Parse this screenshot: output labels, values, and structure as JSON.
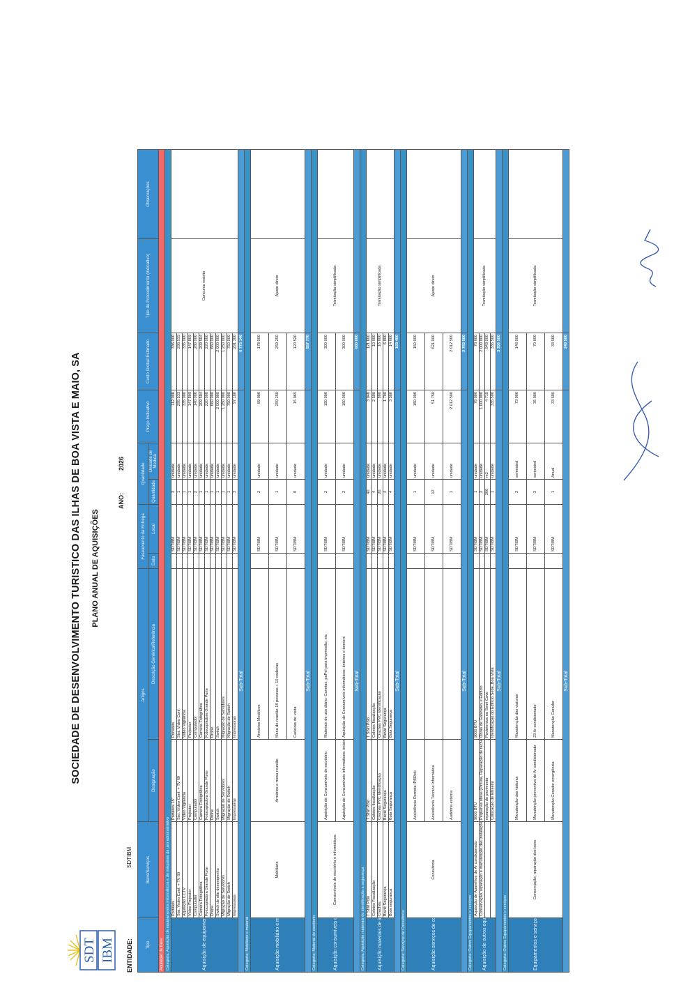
{
  "header": {
    "org": "SOCIEDADE DE DESENVOLVIMENTO TURISTICO DAS ILHAS DE BOA VISTA E MAIO, SA",
    "subtitle": "PLANO ANUAL DE AQUISIÇÕES",
    "entity_label": "ENTIDADE:",
    "entity_value": "SDTIBM",
    "year_label": "ANO:",
    "year_value": "2026",
    "logo_top": "SDT",
    "logo_bottom": "IBM"
  },
  "columns": {
    "tipo": "Tipo",
    "bens": "Bens/Serviços",
    "artigos": "Artigos",
    "designacao": "Designação",
    "descricao": "Descrição Genérica/Referência",
    "faseamento": "Faseamento da Entrega",
    "data": "Data",
    "local": "Local",
    "quantidade_grp": "Quantidade",
    "quantidade": "Quantidade",
    "unidade": "Unidade de Medida",
    "preco": "Preço Indicativo",
    "custo": "Custo Global Estimado",
    "procedimento": "Tipo de Procedimento (indicativo)",
    "observacoes": "Observações"
  },
  "section": "Aquisição de Bens",
  "groups": [
    {
      "category": "Categoria: Aquisição de equipamentos informáticos e de máquinas de uso administrativo",
      "tipo": "Aquisição de equipamentos informáticos e de Máquinas de uso administrativo",
      "procedimento": "Concurso restrito",
      "subtotal_label": "Sub-Total",
      "subtotal": "6 775 146",
      "rows": [
        {
          "bens": "Portáteis",
          "designacao": "Portáteis 15''",
          "descricao": "Portateis",
          "local": "SDTIBM",
          "qtd": "3",
          "unidade": "unidade",
          "preco": "112 000",
          "custo": "336 000"
        },
        {
          "bens": "Sist. Vídeo Conf. + TV 60",
          "designacao": "Sist. Vídeo Conf. + TV 60",
          "descricao": "Sist. Vídeo Conf.",
          "local": "SDTIBM",
          "qtd": "1",
          "unidade": "unidade",
          "preco": "295 533",
          "custo": "295 533"
        },
        {
          "bens": "Aquisição CCTV",
          "designacao": "Vídeo Vigilância",
          "descricao": "Vídeo Vigilância",
          "local": "SDTIBM",
          "qtd": "1",
          "unidade": "unidade",
          "preco": "335 000",
          "custo": "335 000"
        },
        {
          "bens": "Vídeo Projector",
          "designacao": "Projector",
          "descricao": "Projector",
          "local": "SDTIBM",
          "qtd": "1",
          "unidade": "unidade",
          "preco": "147 809",
          "custo": "147 809"
        },
        {
          "bens": "Computador",
          "designacao": "Computador",
          "descricao": "Computador",
          "local": "SDTIBM",
          "qtd": "2",
          "unidade": "unidade",
          "preco": "140 000",
          "custo": "280 000"
        },
        {
          "bens": "Camera Fotográfica",
          "designacao": "Camera Fotográfica",
          "descricao": "Camera Fotográfica",
          "local": "SDTIBM",
          "qtd": "1",
          "unidade": "unidade",
          "preco": "209 504",
          "custo": "209 504"
        },
        {
          "bens": "Fotocopiadora Grande Porte",
          "designacao": "Fotocopiadora Grande Porte",
          "descricao": "Fotocopiadora Grande Porte",
          "local": "SDTIBM",
          "qtd": "1",
          "unidade": "unidade",
          "preco": "220 000",
          "custo": "220 000"
        },
        {
          "bens": "Drone",
          "designacao": "Drone",
          "descricao": "Drone",
          "local": "SDTIBM",
          "qtd": "1",
          "unidade": "unidade",
          "preco": "660 000",
          "custo": "660 000"
        },
        {
          "bens": "Switch de alto desempenho",
          "designacao": "Switch",
          "descricao": "Switch",
          "local": "SDTIBM",
          "qtd": "1",
          "unidade": "unidade",
          "preco": "2 000 000",
          "custo": "2 000 000"
        },
        {
          "bens": "Migração de Servidores",
          "designacao": "Migração de Servidores",
          "descricao": "Migração de Servidores",
          "local": "SDTIBM",
          "qtd": "1",
          "unidade": "unidade",
          "preco": "1 250 000",
          "custo": "1 250 000"
        },
        {
          "bens": "Migração de Switch",
          "designacao": "Migração de Switch",
          "descricao": "Migração de Switch",
          "local": "SDTIBM",
          "qtd": "1",
          "unidade": "unidade",
          "preco": "750 000",
          "custo": "750 000"
        },
        {
          "bens": "Impressoras",
          "designacao": "Impressoras",
          "descricao": "Impressoras",
          "local": "SDTIBM",
          "qtd": "3",
          "unidade": "unidade",
          "preco": "97 100",
          "custo": "291 300"
        }
      ]
    },
    {
      "category": "Categoria: Mobiliário e material",
      "tipo": "Aquisição mobiliário e material",
      "bens": "Mobiliário",
      "designacao": "Armários e mesa reunião",
      "procedimento": "Ajuste direto",
      "subtotal_label": "Sub-Total",
      "subtotal": "557 770",
      "rows": [
        {
          "descricao": "Armários Metálicos",
          "local": "SDTIBM",
          "qtd": "2",
          "unidade": "unidade",
          "preco": "89 000",
          "custo": "178 000"
        },
        {
          "descricao": "Mesa de reunião 18 pessoas + 10 cadeiras",
          "local": "SDTIBM",
          "qtd": "1",
          "unidade": "unidade",
          "preco": "259 250",
          "custo": "259 250"
        },
        {
          "descricao": "Cadeiras de visita",
          "local": "SDTIBM",
          "qtd": "8",
          "unidade": "unidade",
          "preco": "15 065",
          "custo": "120 520"
        }
      ]
    },
    {
      "category": "Categoria: Material de escritorio",
      "tipo": "Aquisição consumíveis de escritório",
      "bens": "Consumíveis de escritório e informáticos",
      "procedimento": "Tramitação simplificada",
      "subtotal_label": "Sub-Total",
      "subtotal": "600 000",
      "rows": [
        {
          "designacao": "Aquisição de Consumíveis de escritório",
          "descricao": "Materiais de uso diário: Canetas, paPel para impressão, etc",
          "local": "SDTIBM",
          "qtd": "2",
          "unidade": "unidade",
          "preco": "150 000",
          "custo": "300 000"
        },
        {
          "designacao": "Aquisição de Consumíveis informáticos: tinteiros e tonners",
          "descricao": "Aquisição de Consumíveis informáticos: tinteiros e tonners",
          "local": "SDTIBM",
          "qtd": "2",
          "unidade": "unidade",
          "preco": "150 000",
          "custo": "300 000"
        }
      ]
    },
    {
      "category": "Categoria: Aquisição materiais de identificação e segurança",
      "tipo": "Aquisição materiais de identificação e segurança",
      "procedimento": "Tramitação simplificada",
      "subtotal_label": "Sub-Total",
      "subtotal": "168 400",
      "rows": [
        {
          "bens": "T Shirt Polo",
          "designacao": "T Shirt Polo",
          "descricao": "T Shirt Polo",
          "local": "SDTIBM",
          "qtd": "40",
          "unidade": "unidade",
          "preco": "3 040",
          "custo": "121 600"
        },
        {
          "bens": "Coletes Fiscalização",
          "designacao": "Coletes fiscalização",
          "descricao": "Coletes fiscalização",
          "local": "SDTIBM",
          "qtd": "4",
          "unidade": "unidade",
          "preco": "2 500",
          "custo": "10 000"
        },
        {
          "bens": "Crachás",
          "designacao": "Crachás PVC Identificação",
          "descricao": "Crachás PVC Identificação",
          "local": "SDTIBM",
          "qtd": "20",
          "unidade": "unidade",
          "preco": "800",
          "custo": "16 000"
        },
        {
          "bens": "Bovié Segurança",
          "designacao": "Bovié Segurança",
          "descricao": "Bovié Segurança",
          "local": "SDTIBM",
          "qtd": "4",
          "unidade": "unidade",
          "preco": "1 700",
          "custo": "6 800"
        },
        {
          "bens": "Bota segurança",
          "designacao": "Bota Segurança",
          "descricao": "Bota Segurança",
          "local": "SDTIBM",
          "qtd": "4",
          "unidade": "unidade",
          "preco": "3 500",
          "custo": "14 000"
        }
      ]
    },
    {
      "category": "Categoria: Serviços de Consultoria",
      "tipo": "Aquisição serviços de consultoria",
      "bens": "Consultoria",
      "procedimento": "Ajuste direto",
      "subtotal_label": "Sub-Total",
      "subtotal": "2 783 500",
      "rows": [
        {
          "designacao": "Assistência Remota IPBRick",
          "descricao": "",
          "local": "SDTIBM",
          "qtd": "1",
          "unidade": "unidade",
          "preco": "150 000",
          "custo": "150 000"
        },
        {
          "designacao": "Assistência Técnica Informática",
          "descricao": "",
          "local": "SDTIBM",
          "qtd": "12",
          "unidade": "unidade",
          "preco": "51 750",
          "custo": "621 000"
        },
        {
          "designacao": "Auditoria externa",
          "descricao": "",
          "local": "SDTIBM",
          "qtd": "1",
          "unidade": "unidade",
          "preco": "2 012 500",
          "custo": "2 012 500"
        }
      ]
    },
    {
      "category": "Categoria: Outros Equipamentos e serviços",
      "tipo": "Aquisição de outros equipamentos e Bens",
      "procedimento": "Tramitação simplificada",
      "subtotal_label": "Sub-Total",
      "subtotal": "3 356 500",
      "rows": [
        {
          "bens": "Aquisição de Aparelhos de Ar condicionado",
          "designacao": "9000 BTU",
          "descricao": "9000 BTU",
          "local": "SDTIBM",
          "qtd": "1",
          "unidade": "unidade",
          "preco": "78 000",
          "custo": "78 000"
        },
        {
          "bens": "Conservação, reparação e manutenção das instalações",
          "designacao": "Pequenas obras (Pintura, Reparação de rachaduras)",
          "descricao": "Obras de Gabinetes e Edifício",
          "local": "SDTIBM",
          "qtd": "2",
          "unidade": "unidade",
          "preco": "1 000 000",
          "custo": "2 000 000"
        },
        {
          "bens": "",
          "designacao": "reparação do pavimento",
          "descricao": "Pavimentos na Semi Cave",
          "local": "SDTIBM",
          "qtd": "200",
          "unidade": "m2",
          "preco": "4 715",
          "custo": "943 000"
        },
        {
          "bens": "",
          "designacao": "Colocação de letreeiro",
          "descricao": "Identificação do Edifício Sede_Boa Vista",
          "local": "SDTIBM",
          "qtd": "1",
          "unidade": "unidade",
          "preco": "335 500",
          "custo": "335 500"
        }
      ]
    },
    {
      "category": "Categoria: Outros Equipamentos e serviços",
      "tipo": "Equipamentos e serviços",
      "bens": "Conservação, reparação dos bens",
      "procedimento": "Tramitação simplificada",
      "subtotal_label": "Sub-Total",
      "subtotal": "249 500",
      "rows": [
        {
          "designacao": "Manutenção das viaturas",
          "descricao": "Manutenção das viaturas",
          "local": "SDTIBM",
          "qtd": "2",
          "unidade": "semestral",
          "preco": "73 000",
          "custo": "146 000"
        },
        {
          "designacao": "Manutenção preventiva de Ar condicionado",
          "descricao": "23 Ar condicionado",
          "local": "SDTIBM",
          "qtd": "2",
          "unidade": "semestral",
          "preco": "35 000",
          "custo": "70 000"
        },
        {
          "designacao": "Manutenção Gerador emergência",
          "descricao": "Manutenção Gerador",
          "local": "SDTIBM",
          "qtd": "1",
          "unidade": "Anual",
          "preco": "33 500",
          "custo": "33 500"
        }
      ]
    }
  ]
}
